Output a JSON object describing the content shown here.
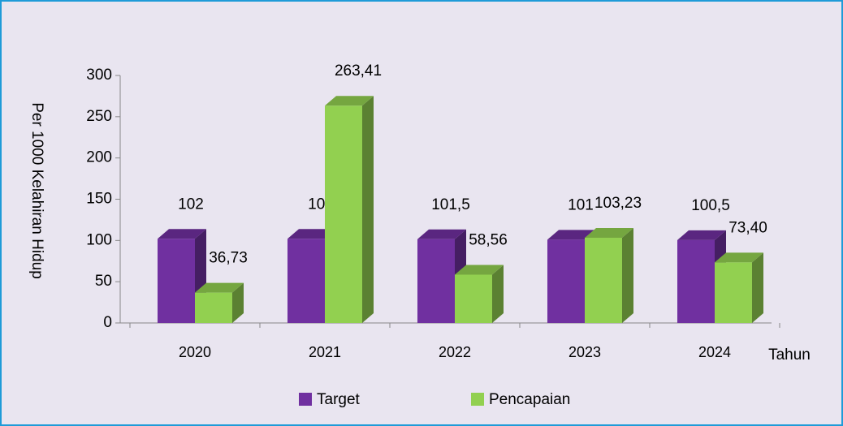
{
  "chart_data": {
    "type": "bar3d",
    "categories": [
      "2020",
      "2021",
      "2022",
      "2023",
      "2024"
    ],
    "series": [
      {
        "name": "Target",
        "color": "#7030a0",
        "values": [
          102,
          102,
          101.5,
          101,
          100.5
        ],
        "value_labels": [
          "102",
          "102",
          "101,5",
          "101",
          "100,5"
        ]
      },
      {
        "name": "Pencapaian",
        "color": "#92d050",
        "values": [
          36.73,
          263.41,
          58.56,
          103.23,
          73.4
        ],
        "value_labels": [
          "36,73",
          "263,41",
          "58,56",
          "103,23",
          "73,40"
        ]
      }
    ],
    "y_axis_label": "Per 1000 Kelahiran Hidup",
    "x_axis_label": "Tahun",
    "ylim": [
      0,
      300
    ],
    "yticks": [
      0,
      50,
      100,
      150,
      200,
      250,
      300
    ]
  }
}
